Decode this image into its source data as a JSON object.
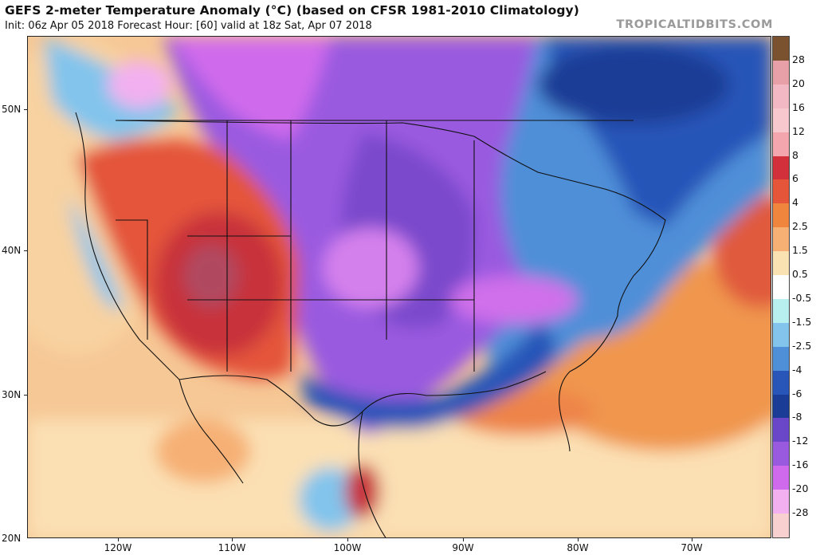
{
  "header": {
    "title": "GEFS 2-meter Temperature Anomaly (°C) (based on CFSR 1981-2010 Climatology)",
    "subtitle": "Init: 06z Apr 05 2018   Forecast Hour: [60]   valid at 18z Sat, Apr 07 2018",
    "source": "TROPICALTIDBITS.COM"
  },
  "axes": {
    "lat_labels": [
      "50N",
      "40N",
      "30N",
      "20N"
    ],
    "lon_labels": [
      "120W",
      "110W",
      "100W",
      "90W",
      "80W",
      "70W"
    ]
  },
  "colorbar": {
    "labels": [
      "28",
      "20",
      "16",
      "12",
      "8",
      "6",
      "4",
      "2.5",
      "1.5",
      "0.5",
      "-0.5",
      "-1.5",
      "-2.5",
      "-4",
      "-6",
      "-8",
      "-12",
      "-16",
      "-20",
      "-28"
    ],
    "colors": [
      "#7a5230",
      "#e8a0a8",
      "#f2b8c4",
      "#f7c9cf",
      "#f4a6ae",
      "#d2303a",
      "#e4553a",
      "#f0853e",
      "#f6b074",
      "#fbe2b2",
      "#ffffff",
      "#b8f0f0",
      "#82c4ec",
      "#4f8fd8",
      "#2855b8",
      "#1a3c96",
      "#6a46c8",
      "#9a5ae0",
      "#d06aec",
      "#f2b0f0",
      "#f8d0d0"
    ]
  }
}
